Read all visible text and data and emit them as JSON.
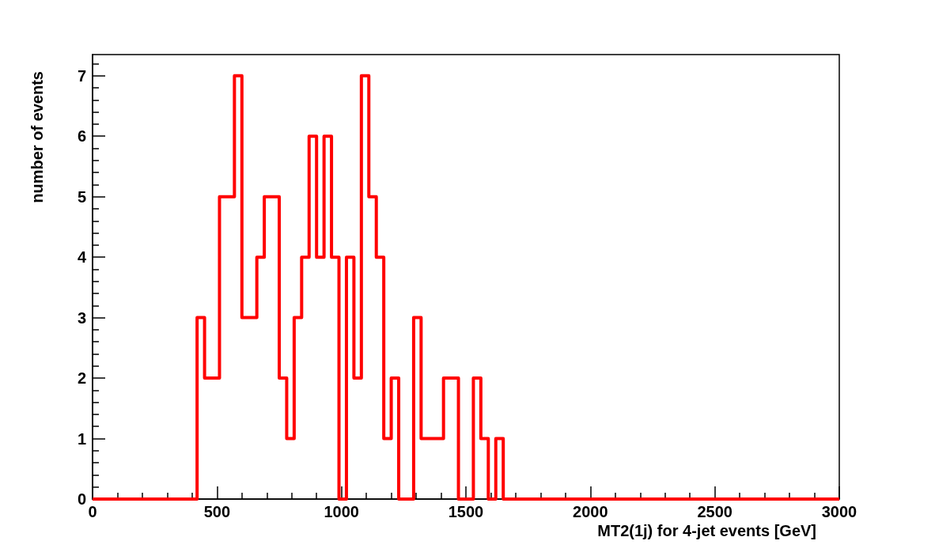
{
  "chart_data": {
    "type": "histogram",
    "xlabel": "MT2(1j) for 4-jet events [GeV]",
    "ylabel": "number of events",
    "bins": [
      0,
      30,
      60,
      90,
      120,
      150,
      180,
      210,
      240,
      270,
      300,
      330,
      360,
      390,
      420,
      450,
      480,
      510,
      540,
      570,
      600,
      630,
      660,
      690,
      720,
      750,
      780,
      810,
      840,
      870,
      900,
      930,
      960,
      990,
      1020,
      1050,
      1080,
      1110,
      1140,
      1170,
      1200,
      1230,
      1260,
      1290,
      1320,
      1350,
      1380,
      1410,
      1440,
      1470,
      1500,
      1530,
      1560,
      1590,
      1620,
      1650,
      1680,
      1710,
      1740,
      1770,
      1800,
      1830,
      1860,
      1890,
      1920,
      1950,
      1980,
      2010,
      2040,
      2070,
      2100,
      2130,
      2160,
      2190,
      2220,
      2250,
      2280,
      2310,
      2340,
      2370,
      2400,
      2430,
      2460,
      2490,
      2520,
      2550,
      2580,
      2610,
      2640,
      2670,
      2700,
      2730,
      2760,
      2790,
      2820,
      2850,
      2880,
      2910,
      2940,
      2970,
      3000
    ],
    "values": [
      0,
      0,
      0,
      0,
      0,
      0,
      0,
      0,
      0,
      0,
      0,
      0,
      0,
      0,
      3,
      2,
      2,
      5,
      5,
      7,
      3,
      3,
      4,
      5,
      5,
      2,
      1,
      3,
      4,
      6,
      4,
      6,
      4,
      0,
      4,
      2,
      7,
      5,
      4,
      1,
      2,
      0,
      0,
      3,
      1,
      1,
      1,
      2,
      2,
      0,
      0,
      2,
      1,
      0,
      1,
      0,
      0,
      0,
      0,
      0,
      0,
      0,
      0,
      0,
      0,
      0,
      0,
      0,
      0,
      0,
      0,
      0,
      0,
      0,
      0,
      0,
      0,
      0,
      0,
      0,
      0,
      0,
      0,
      0,
      0,
      0,
      0,
      0,
      0,
      0,
      0,
      0,
      0,
      0,
      0,
      0,
      0,
      0,
      0,
      0
    ],
    "color": "#ff0000",
    "line_style": "solid",
    "xlim": [
      0,
      3000
    ],
    "xticks": [
      0,
      500,
      1000,
      1500,
      2000,
      2500,
      3000
    ],
    "ylim": [
      0,
      7.35
    ],
    "yticks": [
      0,
      1,
      2,
      3,
      4,
      5,
      6,
      7
    ]
  }
}
